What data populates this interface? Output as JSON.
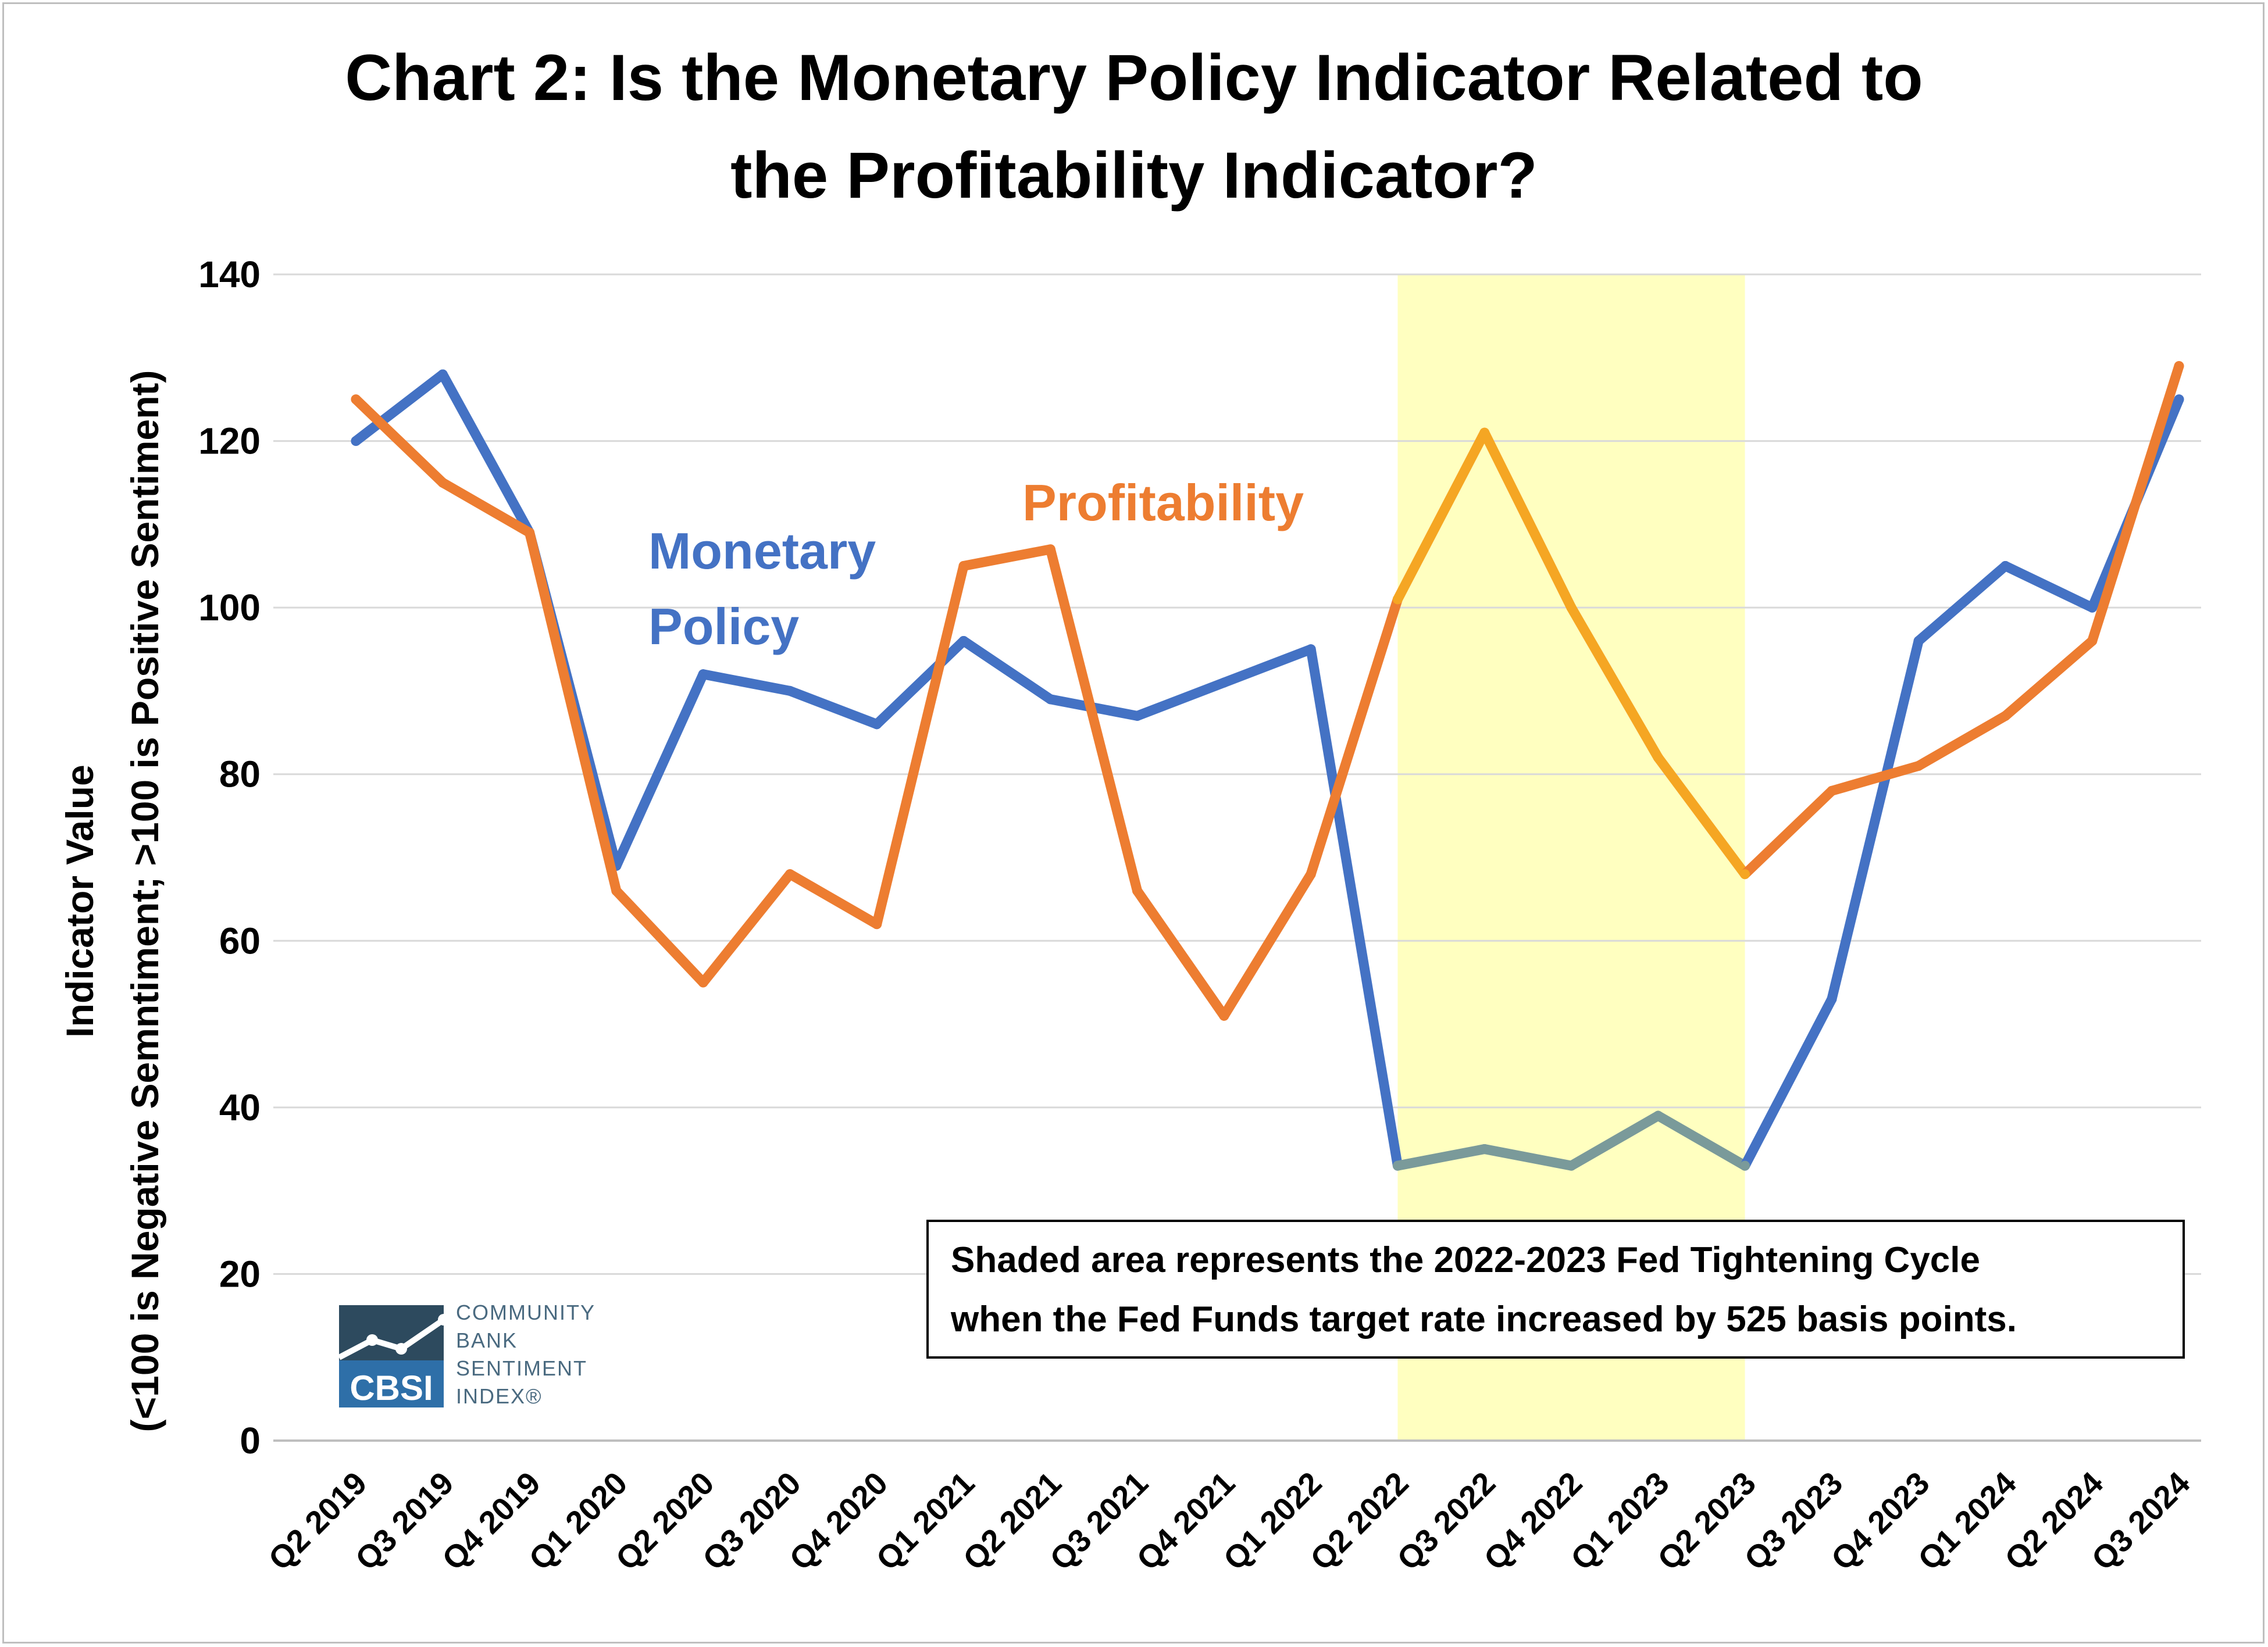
{
  "chart_data": {
    "type": "line",
    "title_lines": [
      "Chart 2: Is the Monetary Policy Indicator Related to",
      "the Profitability Indicator?"
    ],
    "ylabel_lines": [
      "Indicator Value",
      "(<100 is Negative Semntiment; >100 is Positive Sentiment)"
    ],
    "xlabel": "",
    "ylim": [
      0,
      140
    ],
    "yticks": [
      0,
      20,
      40,
      60,
      80,
      100,
      120,
      140
    ],
    "grid": true,
    "categories": [
      "Q2 2019",
      "Q3 2019",
      "Q4 2019",
      "Q1 2020",
      "Q2 2020",
      "Q3 2020",
      "Q4 2020",
      "Q1 2021",
      "Q2 2021",
      "Q3 2021",
      "Q4 2021",
      "Q1 2022",
      "Q2 2022",
      "Q3 2022",
      "Q4 2022",
      "Q1 2023",
      "Q2 2023",
      "Q3 2023",
      "Q4 2023",
      "Q1 2024",
      "Q2 2024",
      "Q3 2024"
    ],
    "series": [
      {
        "name": "Monetary Policy",
        "label_lines": [
          "Monetary",
          "Policy"
        ],
        "color": "#4472c4",
        "shaded_color": "#7a9a9a",
        "values": [
          120,
          128,
          109,
          69,
          92,
          90,
          86,
          96,
          89,
          87,
          91,
          95,
          33,
          35,
          33,
          39,
          33,
          53,
          96,
          105,
          100,
          125
        ]
      },
      {
        "name": "Profitability",
        "label_lines": [
          "Profitability"
        ],
        "color": "#ed7d31",
        "shaded_color": "#f5a623",
        "values": [
          125,
          115,
          109,
          66,
          55,
          68,
          62,
          105,
          107,
          66,
          51,
          68,
          101,
          121,
          100,
          82,
          68,
          78,
          81,
          87,
          96,
          129
        ]
      }
    ],
    "shaded_region": {
      "from": "Q2 2022",
      "to": "Q2 2023",
      "color": "#ffffc0"
    },
    "annotation_lines": [
      "Shaded area represents the 2022-2023 Fed Tightening Cycle",
      "when the Fed Funds target rate increased by 525 basis points."
    ]
  },
  "logo": {
    "mark": "CBSI",
    "text_lines": [
      "COMMUNITY",
      "BANK",
      "SENTIMENT",
      "INDEX®"
    ],
    "color": "#2e6fa8"
  }
}
